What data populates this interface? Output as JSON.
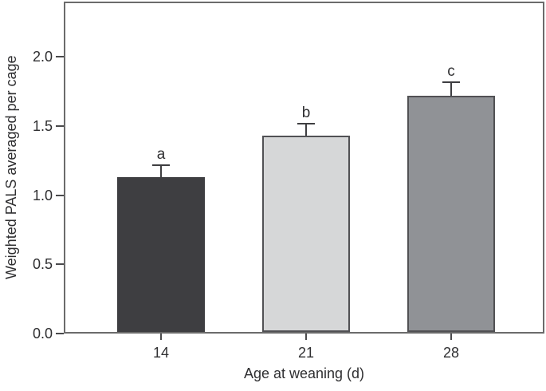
{
  "chart_data": {
    "type": "bar",
    "title": "",
    "xlabel": "Age at weaning (d)",
    "ylabel": "Weighted PALS averaged per cage",
    "categories": [
      "14",
      "21",
      "28"
    ],
    "values": [
      1.13,
      1.43,
      1.72
    ],
    "errors": [
      0.08,
      0.08,
      0.09
    ],
    "error_style": "upper-cap",
    "sig_letters": [
      "a",
      "b",
      "c"
    ],
    "bar_colors": [
      "#3e3e41",
      "#d6d7d8",
      "#909296"
    ],
    "bar_border_colors": [
      "#3e3e41",
      "#515154",
      "#515154"
    ],
    "ylim": [
      0,
      2.4
    ],
    "yticks": [
      0,
      0.5,
      1.0,
      1.5,
      2.0
    ],
    "ytick_labels": [
      "0.0",
      "0.5",
      "1.0",
      "1.5",
      "2.0"
    ],
    "grid": false,
    "legend": "none",
    "frame": "full-box",
    "frame_color": "#6b6b6b",
    "tick_color": "#4a4a4c",
    "error_color": "#3e3e41",
    "text_color": "#2f2f31",
    "background": "#ffffff"
  }
}
